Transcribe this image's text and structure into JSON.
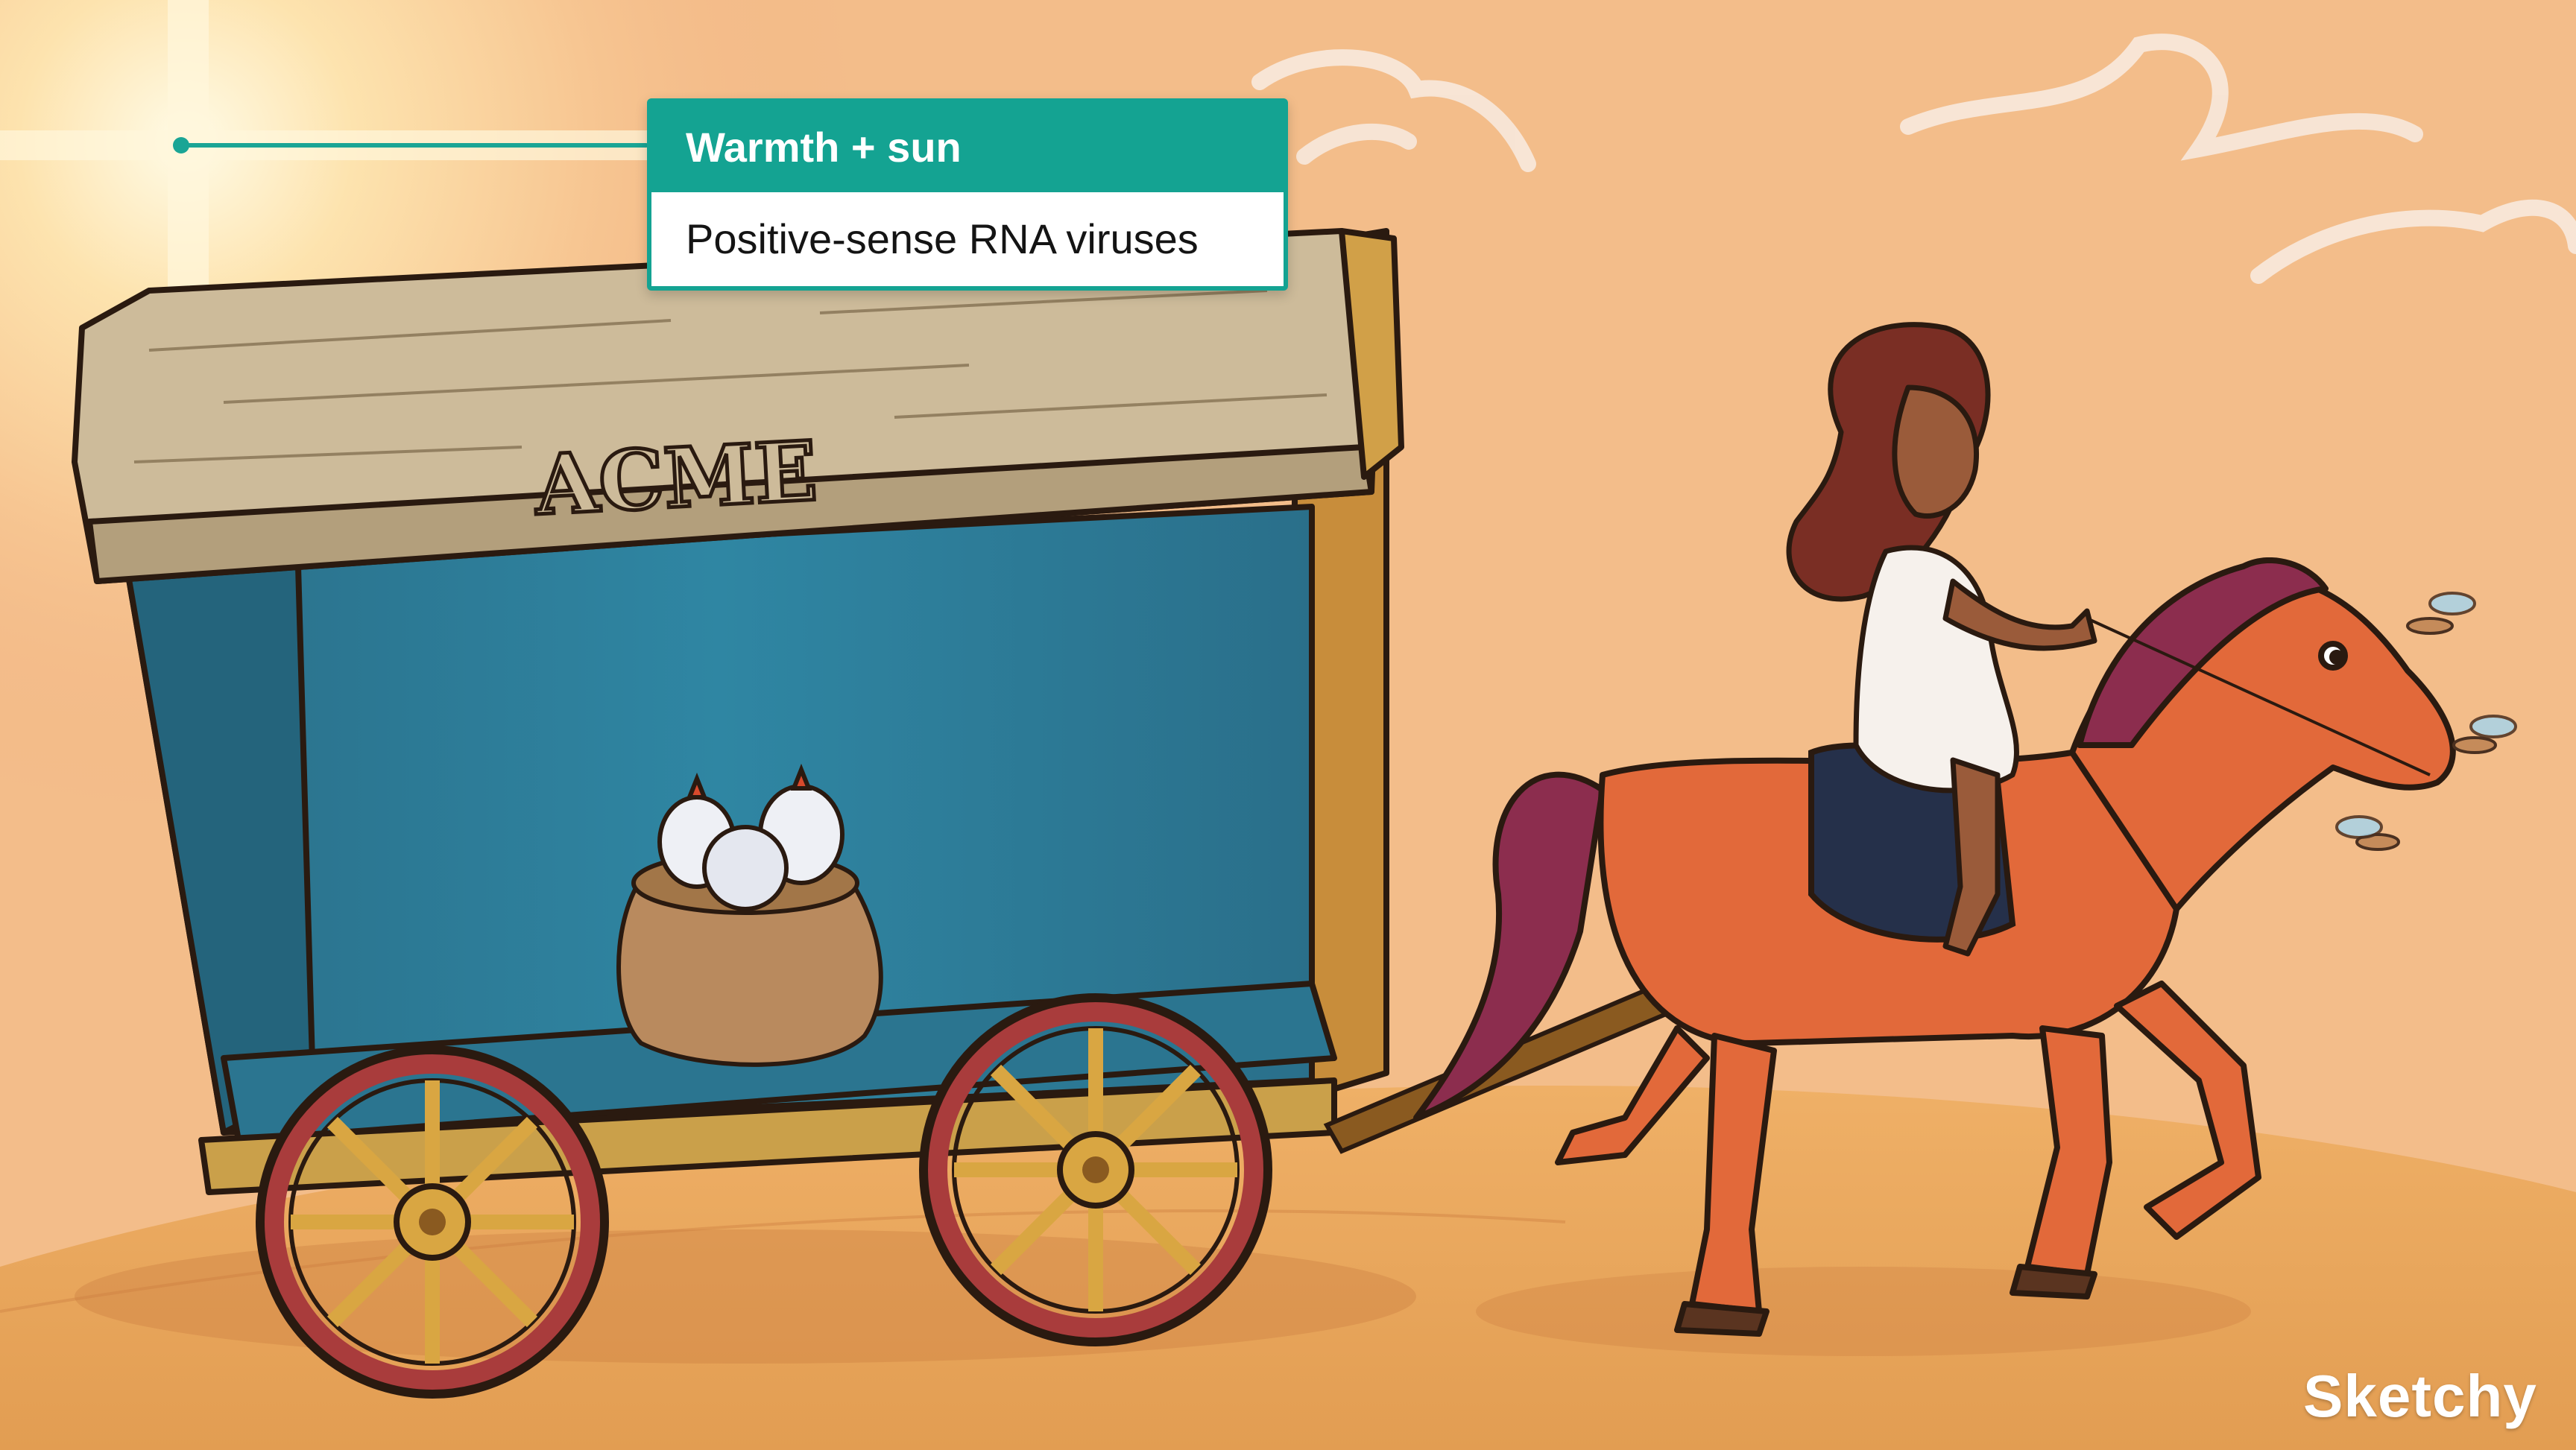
{
  "scene": {
    "wagon_sign": "ACME"
  },
  "callout": {
    "header": "Warmth + sun",
    "body": "Positive-sense RNA viruses"
  },
  "brand": "Sketchy",
  "colors": {
    "accent": "#14a392",
    "sky": "#f3b985",
    "wagon_blue": "#2f7f9b"
  }
}
